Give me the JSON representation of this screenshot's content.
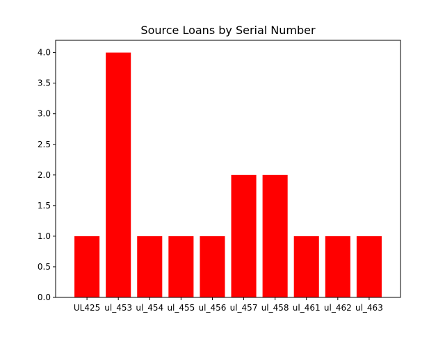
{
  "chart_data": {
    "type": "bar",
    "title": "Source Loans by Serial Number",
    "xlabel": "",
    "ylabel": "",
    "categories": [
      "UL425",
      "ul_453",
      "ul_454",
      "ul_455",
      "ul_456",
      "ul_457",
      "ul_458",
      "ul_461",
      "ul_462",
      "ul_463"
    ],
    "values": [
      1,
      4,
      1,
      1,
      1,
      2,
      2,
      1,
      1,
      1
    ],
    "ylim": [
      0,
      4.2
    ],
    "yticks": [
      0.0,
      0.5,
      1.0,
      1.5,
      2.0,
      2.5,
      3.0,
      3.5,
      4.0
    ],
    "ytick_labels": [
      "0.0",
      "0.5",
      "1.0",
      "1.5",
      "2.0",
      "2.5",
      "3.0",
      "3.5",
      "4.0"
    ],
    "bar_color": "#ff0000",
    "grid": false,
    "legend": "none"
  }
}
